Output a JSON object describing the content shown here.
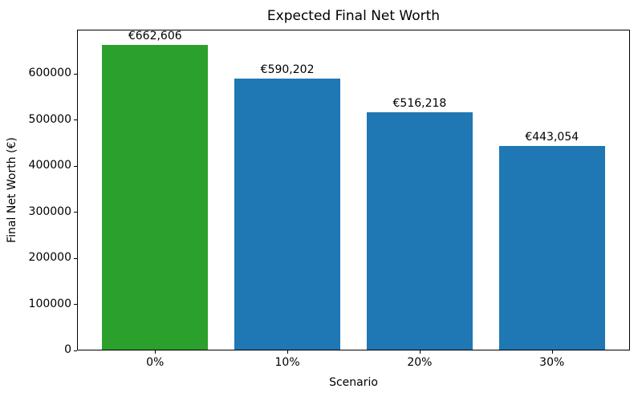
{
  "chart_data": {
    "type": "bar",
    "title": "Expected Final Net Worth",
    "xlabel": "Scenario",
    "ylabel": "Final Net Worth (€)",
    "categories": [
      "0%",
      "10%",
      "20%",
      "30%"
    ],
    "values": [
      662606,
      590202,
      516218,
      443054
    ],
    "bar_labels": [
      "€662,606",
      "€590,202",
      "€516,218",
      "€443,054"
    ],
    "bar_colors": [
      "#2ca02c",
      "#1f77b4",
      "#1f77b4",
      "#1f77b4"
    ],
    "yticks": [
      0,
      100000,
      200000,
      300000,
      400000,
      500000,
      600000
    ],
    "ylim": [
      0,
      695736
    ],
    "xlim": [
      -0.59,
      3.59
    ],
    "bar_width": 0.8,
    "grid": false,
    "legend": "none",
    "colors": {
      "highlight_bar": "#2ca02c",
      "default_bar": "#1f77b4",
      "text": "#000000",
      "background": "#ffffff"
    }
  }
}
